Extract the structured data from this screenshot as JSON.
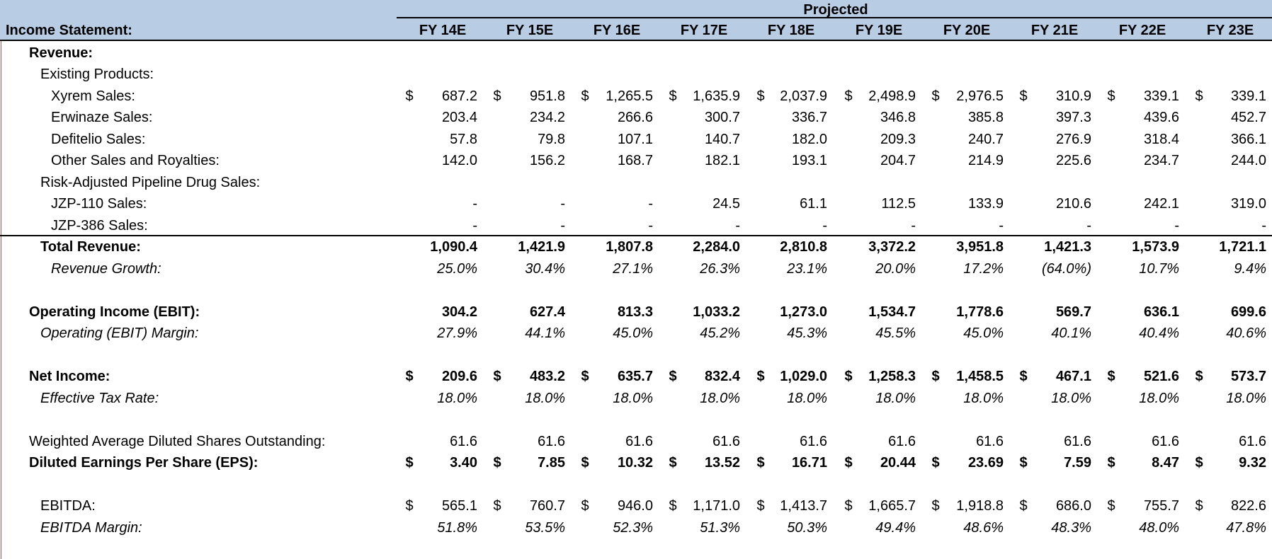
{
  "header": {
    "projected_label": "Projected",
    "statement_title": "Income Statement:",
    "years": [
      "FY 14E",
      "FY 15E",
      "FY 16E",
      "FY 17E",
      "FY 18E",
      "FY 19E",
      "FY 20E",
      "FY 21E",
      "FY 22E",
      "FY 23E"
    ]
  },
  "rows": [
    {
      "key": "revenue_heading",
      "label": "Revenue:",
      "indent": 1,
      "bold": true,
      "italic": false,
      "values": null,
      "dollar": false
    },
    {
      "key": "existing_products",
      "label": "Existing Products:",
      "indent": 2,
      "bold": false,
      "italic": false,
      "values": null,
      "dollar": false
    },
    {
      "key": "xyrem_sales",
      "label": "Xyrem Sales:",
      "indent": 3,
      "bold": false,
      "italic": false,
      "dollar": true,
      "values": [
        "687.2",
        "951.8",
        "1,265.5",
        "1,635.9",
        "2,037.9",
        "2,498.9",
        "2,976.5",
        "310.9",
        "339.1",
        "339.1"
      ]
    },
    {
      "key": "erwinaze_sales",
      "label": "Erwinaze Sales:",
      "indent": 3,
      "bold": false,
      "italic": false,
      "dollar": false,
      "values": [
        "203.4",
        "234.2",
        "266.6",
        "300.7",
        "336.7",
        "346.8",
        "385.8",
        "397.3",
        "439.6",
        "452.7"
      ]
    },
    {
      "key": "defitelio_sales",
      "label": "Defitelio Sales:",
      "indent": 3,
      "bold": false,
      "italic": false,
      "dollar": false,
      "values": [
        "57.8",
        "79.8",
        "107.1",
        "140.7",
        "182.0",
        "209.3",
        "240.7",
        "276.9",
        "318.4",
        "366.1"
      ]
    },
    {
      "key": "other_sales",
      "label": "Other Sales and Royalties:",
      "indent": 3,
      "bold": false,
      "italic": false,
      "dollar": false,
      "values": [
        "142.0",
        "156.2",
        "168.7",
        "182.1",
        "193.1",
        "204.7",
        "214.9",
        "225.6",
        "234.7",
        "244.0"
      ]
    },
    {
      "key": "pipeline_heading",
      "label": "Risk-Adjusted Pipeline Drug Sales:",
      "indent": 2,
      "bold": false,
      "italic": false,
      "values": null,
      "dollar": false
    },
    {
      "key": "jzp110_sales",
      "label": "JZP-110 Sales:",
      "indent": 3,
      "bold": false,
      "italic": false,
      "dollar": false,
      "values": [
        "-",
        "-",
        "-",
        "24.5",
        "61.1",
        "112.5",
        "133.9",
        "210.6",
        "242.1",
        "319.0"
      ]
    },
    {
      "key": "jzp386_sales",
      "label": "JZP-386 Sales:",
      "indent": 3,
      "bold": false,
      "italic": false,
      "dollar": false,
      "values": [
        "-",
        "-",
        "-",
        "-",
        "-",
        "-",
        "-",
        "-",
        "-",
        "-"
      ]
    },
    {
      "key": "total_revenue",
      "label": "Total Revenue:",
      "indent": 2,
      "bold": true,
      "italic": false,
      "dollar": false,
      "values": [
        "1,090.4",
        "1,421.9",
        "1,807.8",
        "2,284.0",
        "2,810.8",
        "3,372.2",
        "3,951.8",
        "1,421.3",
        "1,573.9",
        "1,721.1"
      ]
    },
    {
      "key": "revenue_growth",
      "label": "Revenue Growth:",
      "indent": 3,
      "bold": false,
      "italic": true,
      "dollar": false,
      "values": [
        "25.0%",
        "30.4%",
        "27.1%",
        "26.3%",
        "23.1%",
        "20.0%",
        "17.2%",
        "(64.0%)",
        "10.7%",
        "9.4%"
      ]
    },
    {
      "key": "ebit",
      "label": "Operating Income (EBIT):",
      "indent": 1,
      "bold": true,
      "italic": false,
      "dollar": false,
      "values": [
        "304.2",
        "627.4",
        "813.3",
        "1,033.2",
        "1,273.0",
        "1,534.7",
        "1,778.6",
        "569.7",
        "636.1",
        "699.6"
      ]
    },
    {
      "key": "ebit_margin",
      "label": "Operating (EBIT) Margin:",
      "indent": 2,
      "bold": false,
      "italic": true,
      "dollar": false,
      "values": [
        "27.9%",
        "44.1%",
        "45.0%",
        "45.2%",
        "45.3%",
        "45.5%",
        "45.0%",
        "40.1%",
        "40.4%",
        "40.6%"
      ]
    },
    {
      "key": "net_income",
      "label": "Net Income:",
      "indent": 1,
      "bold": true,
      "italic": false,
      "dollar": true,
      "values": [
        "209.6",
        "483.2",
        "635.7",
        "832.4",
        "1,029.0",
        "1,258.3",
        "1,458.5",
        "467.1",
        "521.6",
        "573.7"
      ]
    },
    {
      "key": "tax_rate",
      "label": "Effective Tax Rate:",
      "indent": 2,
      "bold": false,
      "italic": true,
      "dollar": false,
      "values": [
        "18.0%",
        "18.0%",
        "18.0%",
        "18.0%",
        "18.0%",
        "18.0%",
        "18.0%",
        "18.0%",
        "18.0%",
        "18.0%"
      ]
    },
    {
      "key": "diluted_shares",
      "label": "Weighted Average Diluted Shares Outstanding:",
      "indent": 1,
      "bold": false,
      "italic": false,
      "dollar": false,
      "values": [
        "61.6",
        "61.6",
        "61.6",
        "61.6",
        "61.6",
        "61.6",
        "61.6",
        "61.6",
        "61.6",
        "61.6"
      ]
    },
    {
      "key": "diluted_eps",
      "label": "Diluted Earnings Per Share (EPS):",
      "indent": 1,
      "bold": true,
      "italic": false,
      "dollar": true,
      "values": [
        "3.40",
        "7.85",
        "10.32",
        "13.52",
        "16.71",
        "20.44",
        "23.69",
        "7.59",
        "8.47",
        "9.32"
      ]
    },
    {
      "key": "ebitda",
      "label": "EBITDA:",
      "indent": 2,
      "bold": false,
      "italic": false,
      "dollar": true,
      "values": [
        "565.1",
        "760.7",
        "946.0",
        "1,171.0",
        "1,413.7",
        "1,665.7",
        "1,918.8",
        "686.0",
        "755.7",
        "822.6"
      ]
    },
    {
      "key": "ebitda_margin",
      "label": "EBITDA Margin:",
      "indent": 2,
      "bold": false,
      "italic": true,
      "dollar": false,
      "values": [
        "51.8%",
        "53.5%",
        "52.3%",
        "51.3%",
        "50.3%",
        "49.4%",
        "48.6%",
        "48.3%",
        "48.0%",
        "47.8%"
      ]
    }
  ],
  "currency_symbol": "$",
  "colors": {
    "header_band": "#b8cce4",
    "left_rule": "#c0504d"
  }
}
